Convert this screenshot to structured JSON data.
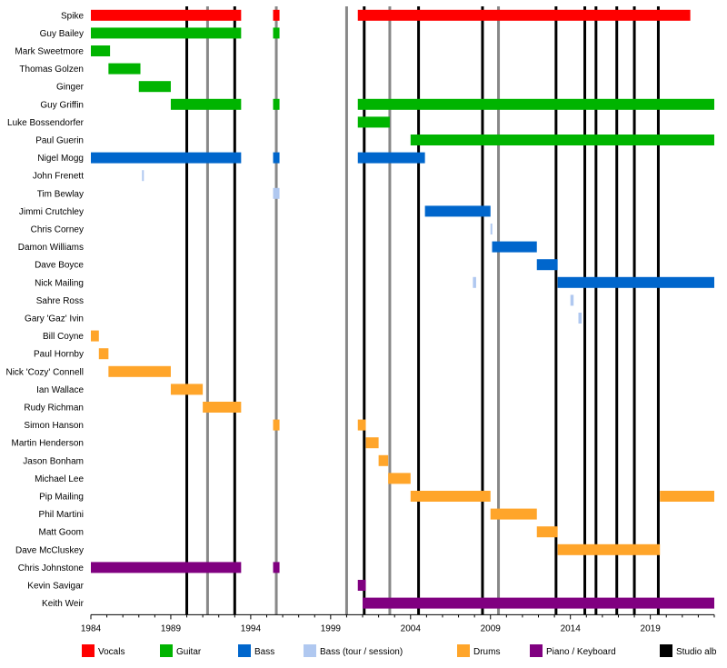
{
  "chart_data": {
    "type": "timeline",
    "x_range": [
      1984,
      2023
    ],
    "x_ticks": [
      1984,
      1989,
      1994,
      1999,
      2004,
      2009,
      2014,
      2019
    ],
    "members": [
      {
        "name": "Spike",
        "bars": [
          {
            "role": "Vocals",
            "start": 1984.0,
            "end": 1993.4
          },
          {
            "role": "Vocals",
            "start": 1995.4,
            "end": 1995.8
          },
          {
            "role": "Vocals",
            "start": 2000.7,
            "end": 2021.5
          }
        ]
      },
      {
        "name": "Guy Bailey",
        "bars": [
          {
            "role": "Guitar",
            "start": 1984.0,
            "end": 1993.4
          },
          {
            "role": "Guitar",
            "start": 1995.4,
            "end": 1995.8
          }
        ]
      },
      {
        "name": "Mark Sweetmore",
        "bars": [
          {
            "role": "Guitar",
            "start": 1984.0,
            "end": 1985.2
          }
        ]
      },
      {
        "name": "Thomas Golzen",
        "bars": [
          {
            "role": "Guitar",
            "start": 1985.1,
            "end": 1987.1
          }
        ]
      },
      {
        "name": "Ginger",
        "bars": [
          {
            "role": "Guitar",
            "start": 1987.0,
            "end": 1989.0
          }
        ]
      },
      {
        "name": "Guy Griffin",
        "bars": [
          {
            "role": "Guitar",
            "start": 1989.0,
            "end": 1993.4
          },
          {
            "role": "Guitar",
            "start": 1995.4,
            "end": 1995.8
          },
          {
            "role": "Guitar",
            "start": 2000.7,
            "end": 2023.0
          }
        ]
      },
      {
        "name": "Luke Bossendorfer",
        "bars": [
          {
            "role": "Guitar",
            "start": 2000.7,
            "end": 2002.7
          }
        ]
      },
      {
        "name": "Paul Guerin",
        "bars": [
          {
            "role": "Guitar",
            "start": 2004.0,
            "end": 2023.0
          }
        ]
      },
      {
        "name": "Nigel Mogg",
        "bars": [
          {
            "role": "Bass",
            "start": 1984.0,
            "end": 1993.4
          },
          {
            "role": "Bass",
            "start": 1995.4,
            "end": 1995.8
          },
          {
            "role": "Bass",
            "start": 2000.7,
            "end": 2004.9
          }
        ]
      },
      {
        "name": "John Frenett",
        "bars": [
          {
            "role": "Bass (tour / session)",
            "start": 1987.2,
            "end": 1987.3
          }
        ]
      },
      {
        "name": "Tim Bewlay",
        "bars": [
          {
            "role": "Bass (tour / session)",
            "start": 1995.4,
            "end": 1995.8
          }
        ]
      },
      {
        "name": "Jimmi Crutchley",
        "bars": [
          {
            "role": "Bass",
            "start": 2004.9,
            "end": 2009.0
          }
        ]
      },
      {
        "name": "Chris Corney",
        "bars": [
          {
            "role": "Bass (tour / session)",
            "start": 2009.0,
            "end": 2009.1
          }
        ]
      },
      {
        "name": "Damon Williams",
        "bars": [
          {
            "role": "Bass",
            "start": 2009.1,
            "end": 2011.9
          }
        ]
      },
      {
        "name": "Dave Boyce",
        "bars": [
          {
            "role": "Bass",
            "start": 2011.9,
            "end": 2013.2
          }
        ]
      },
      {
        "name": "Nick Mailing",
        "bars": [
          {
            "role": "Bass (tour / session)",
            "start": 2007.9,
            "end": 2008.1
          },
          {
            "role": "Bass",
            "start": 2013.2,
            "end": 2023.0
          }
        ]
      },
      {
        "name": "Sahre Ross",
        "bars": [
          {
            "role": "Bass (tour / session)",
            "start": 2014.0,
            "end": 2014.2
          }
        ]
      },
      {
        "name": "Gary 'Gaz' Ivin",
        "bars": [
          {
            "role": "Bass (tour / session)",
            "start": 2014.5,
            "end": 2014.7
          }
        ]
      },
      {
        "name": "Bill Coyne",
        "bars": [
          {
            "role": "Drums",
            "start": 1984.0,
            "end": 1984.5
          }
        ]
      },
      {
        "name": "Paul Hornby",
        "bars": [
          {
            "role": "Drums",
            "start": 1984.5,
            "end": 1985.1
          }
        ]
      },
      {
        "name": "Nick 'Cozy' Connell",
        "bars": [
          {
            "role": "Drums",
            "start": 1985.1,
            "end": 1989.0
          }
        ]
      },
      {
        "name": "Ian Wallace",
        "bars": [
          {
            "role": "Drums",
            "start": 1989.0,
            "end": 1991.0
          }
        ]
      },
      {
        "name": "Rudy Richman",
        "bars": [
          {
            "role": "Drums",
            "start": 1991.0,
            "end": 1993.4
          }
        ]
      },
      {
        "name": "Simon Hanson",
        "bars": [
          {
            "role": "Drums",
            "start": 1995.4,
            "end": 1995.8
          },
          {
            "role": "Drums",
            "start": 2000.7,
            "end": 2001.2
          }
        ]
      },
      {
        "name": "Martin Henderson",
        "bars": [
          {
            "role": "Drums",
            "start": 2001.2,
            "end": 2002.0
          }
        ]
      },
      {
        "name": "Jason Bonham",
        "bars": [
          {
            "role": "Drums",
            "start": 2002.0,
            "end": 2002.6
          }
        ]
      },
      {
        "name": "Michael Lee",
        "bars": [
          {
            "role": "Drums",
            "start": 2002.6,
            "end": 2004.0
          }
        ]
      },
      {
        "name": "Pip Mailing",
        "bars": [
          {
            "role": "Drums",
            "start": 2004.0,
            "end": 2009.0
          },
          {
            "role": "Drums",
            "start": 2019.6,
            "end": 2023.0
          }
        ]
      },
      {
        "name": "Phil Martini",
        "bars": [
          {
            "role": "Drums",
            "start": 2009.0,
            "end": 2011.9
          }
        ]
      },
      {
        "name": "Matt Goom",
        "bars": [
          {
            "role": "Drums",
            "start": 2011.9,
            "end": 2013.2
          }
        ]
      },
      {
        "name": "Dave McCluskey",
        "bars": [
          {
            "role": "Drums",
            "start": 2013.2,
            "end": 2019.6
          }
        ]
      },
      {
        "name": "Chris Johnstone",
        "bars": [
          {
            "role": "Piano / Keyboard",
            "start": 1984.0,
            "end": 1993.4
          },
          {
            "role": "Piano / Keyboard",
            "start": 1995.4,
            "end": 1995.8
          }
        ]
      },
      {
        "name": "Kevin Savigar",
        "bars": [
          {
            "role": "Piano / Keyboard",
            "start": 2000.7,
            "end": 2001.2
          }
        ]
      },
      {
        "name": "Keith Weir",
        "bars": [
          {
            "role": "Piano / Keyboard",
            "start": 2001.0,
            "end": 2023.0
          }
        ]
      }
    ],
    "studio_albums": [
      1990.0,
      1993.0,
      2001.1,
      2004.5,
      2008.5,
      2013.1,
      2014.9,
      2015.6,
      2016.9,
      2018.0,
      2019.5
    ],
    "live_albums": [
      1991.3,
      1995.6,
      2000.0,
      2002.7,
      2009.5
    ],
    "legend": [
      {
        "label": "Vocals",
        "color": "#ff0000"
      },
      {
        "label": "Guitar",
        "color": "#00b400"
      },
      {
        "label": "Bass",
        "color": "#0066cc"
      },
      {
        "label": "Bass (tour / session)",
        "color": "#b0c8f0"
      },
      {
        "label": "Drums",
        "color": "#ffa52a"
      },
      {
        "label": "Piano / Keyboard",
        "color": "#800080"
      },
      {
        "label": "Studio alb",
        "color": "#000000"
      }
    ],
    "legend_position": "bottom",
    "grid": false
  }
}
